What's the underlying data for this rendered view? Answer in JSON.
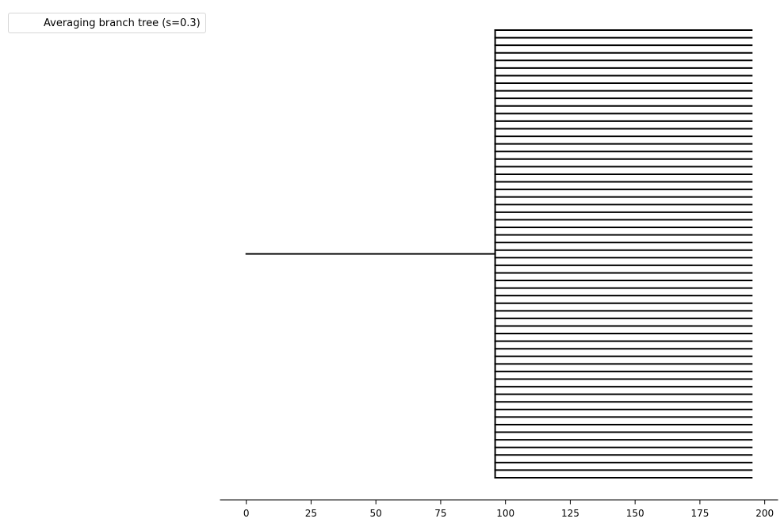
{
  "chart_data": {
    "type": "tree",
    "legend": {
      "label": "Averaging branch tree (s=0.3)",
      "placement": "top-left"
    },
    "x_axis": {
      "ticks": [
        0,
        25,
        50,
        75,
        100,
        125,
        150,
        175,
        200
      ],
      "tick_labels": [
        "0",
        "25",
        "50",
        "75",
        "100",
        "125",
        "150",
        "175",
        "200"
      ],
      "xlim": [
        -10,
        205
      ]
    },
    "y_axis": {
      "visible": false
    },
    "grid": false,
    "line_color": "#000000",
    "tree": {
      "root": {
        "x_start": 0,
        "x_end": 96
      },
      "branch_x": 96,
      "leaf_x_end": 195,
      "leaf_count": 60
    }
  }
}
